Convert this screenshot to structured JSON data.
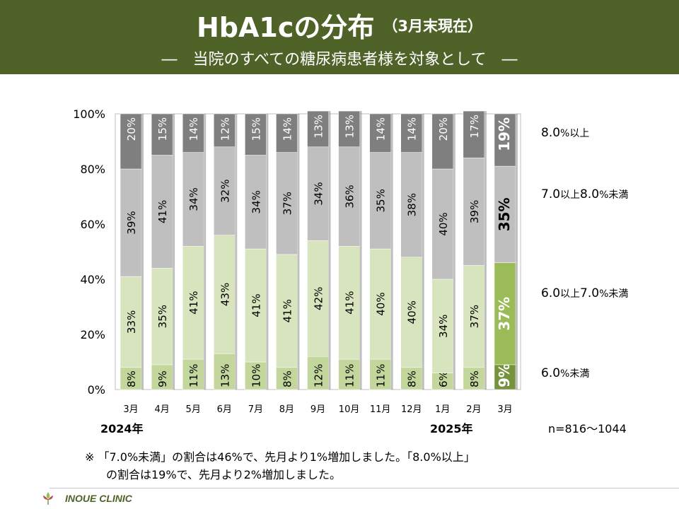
{
  "header": {
    "title": "HbA1cの分布",
    "title_note": "（3月末現在）",
    "subtitle": "―　当院のすべての糖尿病患者様を対象として　―"
  },
  "colors": {
    "header_bg": "#4f6228",
    "band_ge8": "#7f7f7f",
    "band_7to8": "#bfbfbf",
    "band_6to7": "#d7e4bd",
    "band_lt6": "#c3d69b",
    "highlight_ge8": "#7f7f7f",
    "highlight_7to8": "#bfbfbf",
    "highlight_6to7": "#9bbb59",
    "highlight_lt6": "#76923c"
  },
  "legend": {
    "ge8": {
      "num": "8.0",
      "unit": "%以上"
    },
    "r7to8": {
      "num1": "7.0",
      "mid": "以上",
      "num2": "8.0",
      "unit": "%未満"
    },
    "r6to7": {
      "num1": "6.0",
      "mid": "以上",
      "num2": "7.0",
      "unit": "%未満"
    },
    "lt6": {
      "num": "6.0",
      "unit": "%未満"
    }
  },
  "years": {
    "start": "2024年",
    "end": "2025年"
  },
  "n_label": "n=816～1044",
  "note": {
    "line1": "※ 「7.0%未満」の割合は46%で、先月より1%増加しました。「8.0%以上」",
    "line2": "の割合は19%で、先月より2%増加しました。"
  },
  "footer": {
    "clinic": "INOUE CLINIC"
  },
  "chart_data": {
    "type": "bar",
    "stacked": true,
    "categories": [
      "3月",
      "4月",
      "5月",
      "6月",
      "7月",
      "8月",
      "9月",
      "10月",
      "11月",
      "12月",
      "1月",
      "2月",
      "3月"
    ],
    "ylim": [
      0,
      100
    ],
    "yticks": [
      "0%",
      "20%",
      "40%",
      "60%",
      "80%",
      "100%"
    ],
    "highlight_index": 12,
    "series": [
      {
        "name": "6.0%未満",
        "values": [
          8,
          9,
          11,
          13,
          10,
          8,
          12,
          11,
          11,
          8,
          6,
          8,
          9
        ]
      },
      {
        "name": "6.0以上7.0%未満",
        "values": [
          33,
          35,
          41,
          43,
          41,
          41,
          42,
          41,
          40,
          40,
          34,
          37,
          37
        ]
      },
      {
        "name": "7.0以上8.0%未満",
        "values": [
          39,
          41,
          34,
          32,
          34,
          37,
          34,
          36,
          35,
          38,
          40,
          39,
          35
        ]
      },
      {
        "name": "8.0%以上",
        "values": [
          20,
          15,
          14,
          12,
          15,
          14,
          13,
          13,
          14,
          14,
          20,
          17,
          19
        ]
      }
    ]
  }
}
